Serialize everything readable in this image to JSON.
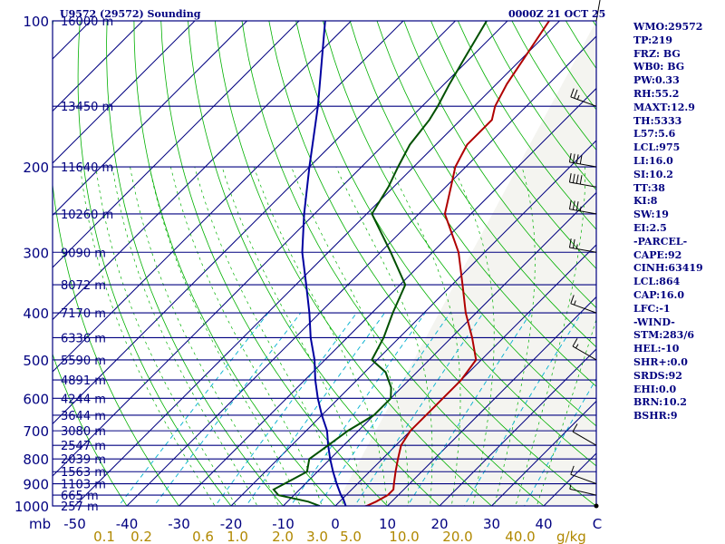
{
  "header": {
    "station": "U9572 (29572) Sounding",
    "valid_time": "0000Z 21 OCT 25"
  },
  "chart_data": {
    "type": "skew-t",
    "title": "U9572 (29572) Sounding",
    "temperature_unit_label": "C",
    "mixing_ratio_unit_label": "g/kg",
    "pressure_unit_label": "mb",
    "pressure_ticks": [
      1000,
      900,
      800,
      700,
      600,
      500,
      400,
      300,
      200,
      100
    ],
    "temperature_ticks": [
      -50,
      -40,
      -30,
      -20,
      -10,
      0,
      10,
      20,
      30,
      40
    ],
    "mixing_ratio_labels": [
      "0.1",
      "0.2",
      "0.6",
      "1.0",
      "2.0",
      "3.0",
      "5.0",
      "10.0",
      "20.0",
      "40.0"
    ],
    "mixing_ratio_values": [
      0.1,
      0.2,
      0.6,
      1.0,
      2.0,
      3.0,
      5.0,
      10.0,
      20.0,
      40.0
    ],
    "height_levels": [
      {
        "p": 100,
        "label": "16000 m"
      },
      {
        "p": 150,
        "label": "13450 m"
      },
      {
        "p": 200,
        "label": "11640 m"
      },
      {
        "p": 250,
        "label": "10260 m"
      },
      {
        "p": 300,
        "label": "9090 m"
      },
      {
        "p": 350,
        "label": "8072 m"
      },
      {
        "p": 400,
        "label": "7170 m"
      },
      {
        "p": 450,
        "label": "6336 m"
      },
      {
        "p": 500,
        "label": "5590 m"
      },
      {
        "p": 550,
        "label": "4891 m"
      },
      {
        "p": 600,
        "label": "4244 m"
      },
      {
        "p": 650,
        "label": "3644 m"
      },
      {
        "p": 700,
        "label": "3080 m"
      },
      {
        "p": 750,
        "label": "2547 m"
      },
      {
        "p": 800,
        "label": "2039 m"
      },
      {
        "p": 850,
        "label": "1563 m"
      },
      {
        "p": 900,
        "label": "1103 m"
      },
      {
        "p": 950,
        "label": "665 m"
      },
      {
        "p": 1000,
        "label": "257 m"
      }
    ],
    "temperature_profile": [
      [
        1016,
        4
      ],
      [
        1000,
        6
      ],
      [
        980,
        7
      ],
      [
        950,
        8
      ],
      [
        925,
        8
      ],
      [
        900,
        7
      ],
      [
        850,
        5
      ],
      [
        800,
        3
      ],
      [
        750,
        1
      ],
      [
        700,
        0
      ],
      [
        650,
        0
      ],
      [
        600,
        0
      ],
      [
        570,
        0
      ],
      [
        550,
        0
      ],
      [
        500,
        -1
      ],
      [
        450,
        -6
      ],
      [
        400,
        -12
      ],
      [
        350,
        -18
      ],
      [
        300,
        -25
      ],
      [
        250,
        -35
      ],
      [
        220,
        -39
      ],
      [
        200,
        -42
      ],
      [
        180,
        -44
      ],
      [
        160,
        -44
      ],
      [
        150,
        -46
      ],
      [
        135,
        -48
      ],
      [
        100,
        -52
      ]
    ],
    "dewpoint_profile": [
      [
        1016,
        -13
      ],
      [
        1000,
        -3
      ],
      [
        980,
        -6
      ],
      [
        950,
        -13
      ],
      [
        925,
        -15
      ],
      [
        900,
        -14
      ],
      [
        850,
        -12
      ],
      [
        800,
        -14
      ],
      [
        750,
        -13
      ],
      [
        700,
        -12
      ],
      [
        650,
        -10
      ],
      [
        600,
        -10
      ],
      [
        570,
        -12
      ],
      [
        530,
        -16
      ],
      [
        500,
        -21
      ],
      [
        450,
        -23
      ],
      [
        400,
        -26
      ],
      [
        350,
        -29
      ],
      [
        300,
        -38
      ],
      [
        250,
        -49
      ],
      [
        220,
        -51
      ],
      [
        200,
        -53
      ],
      [
        180,
        -55
      ],
      [
        160,
        -56
      ],
      [
        150,
        -57
      ],
      [
        135,
        -59
      ],
      [
        120,
        -61
      ],
      [
        100,
        -64
      ]
    ],
    "parcel_profile": [
      [
        1016,
        3
      ],
      [
        1000,
        2
      ],
      [
        964,
        0
      ],
      [
        950,
        -1
      ],
      [
        900,
        -4
      ],
      [
        850,
        -7
      ],
      [
        800,
        -10
      ],
      [
        750,
        -13
      ],
      [
        700,
        -16
      ],
      [
        650,
        -20
      ],
      [
        600,
        -24
      ],
      [
        550,
        -28
      ],
      [
        500,
        -32
      ],
      [
        450,
        -37
      ],
      [
        400,
        -42
      ],
      [
        350,
        -48
      ],
      [
        300,
        -55
      ],
      [
        250,
        -62
      ],
      [
        200,
        -70
      ],
      [
        150,
        -80
      ],
      [
        100,
        -95
      ]
    ],
    "wind_barbs": [
      {
        "p": 950,
        "dir": 283,
        "spd": 6
      },
      {
        "p": 900,
        "dir": 290,
        "spd": 10
      },
      {
        "p": 750,
        "dir": 300,
        "spd": 10
      },
      {
        "p": 500,
        "dir": 300,
        "spd": 15
      },
      {
        "p": 400,
        "dir": 290,
        "spd": 15
      },
      {
        "p": 300,
        "dir": 280,
        "spd": 25
      },
      {
        "p": 250,
        "dir": 280,
        "spd": 35
      },
      {
        "p": 220,
        "dir": 280,
        "spd": 40
      },
      {
        "p": 200,
        "dir": 280,
        "spd": 40
      },
      {
        "p": 150,
        "dir": 290,
        "spd": 25
      },
      {
        "p": 100,
        "dir": 10,
        "spd": 10
      }
    ],
    "colors": {
      "isobar": "#000080",
      "isotherm": "#000080",
      "dry_adiabat": "#00b000",
      "moist_adiabat": "#00b000",
      "mixing_ratio": "#00b0d0",
      "temperature": "#b00000",
      "dewpoint": "#005000",
      "parcel": "#0000a0",
      "axis_text": "#000080",
      "mixing_text": "#b08800"
    }
  },
  "indices": [
    "WMO:29572",
    "TP:219",
    "FRZ: BG",
    "WB0: BG",
    "PW:0.33",
    "RH:55.2",
    "MAXT:12.9",
    "TH:5333",
    "L57:5.6",
    "LCL:975",
    "LI:16.0",
    "SI:10.2",
    "TT:38",
    "KI:8",
    "SW:19",
    "EI:2.5",
    "-PARCEL-",
    "CAPE:92",
    "CINH:63419",
    "LCL:864",
    "CAP:16.0",
    "LFC:-1",
    "-WIND-",
    "STM:283/6",
    "HEL:-10",
    "SHR+:0.0",
    "SRDS:92",
    "EHI:0.0",
    "BRN:10.2",
    "BSHR:9"
  ]
}
